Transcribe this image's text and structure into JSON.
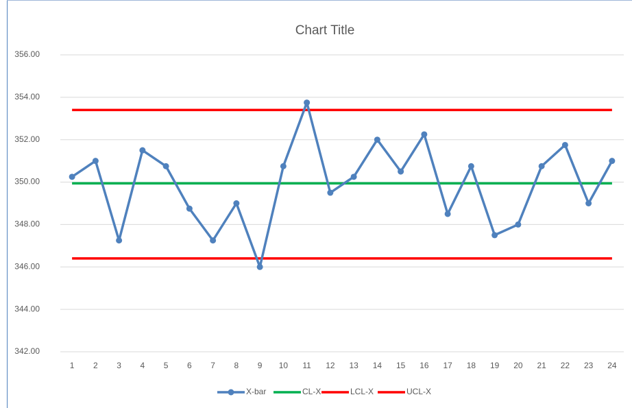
{
  "chart_data": {
    "type": "line",
    "title": "Chart Title",
    "categories": [
      "1",
      "2",
      "3",
      "4",
      "5",
      "6",
      "7",
      "8",
      "9",
      "10",
      "11",
      "12",
      "13",
      "14",
      "15",
      "16",
      "17",
      "18",
      "19",
      "20",
      "21",
      "22",
      "23",
      "24"
    ],
    "series": [
      {
        "name": "X-bar",
        "color": "#4f81bd",
        "marker": true,
        "values": [
          350.25,
          351.0,
          347.25,
          351.5,
          350.75,
          348.75,
          347.25,
          349.0,
          346.0,
          350.75,
          353.75,
          349.5,
          350.25,
          352.0,
          350.5,
          352.25,
          348.5,
          350.75,
          347.5,
          348.0,
          350.75,
          351.75,
          349.0,
          351.0
        ]
      },
      {
        "name": "CL-X",
        "color": "#00b050",
        "values": [
          349.94,
          349.94,
          349.94,
          349.94,
          349.94,
          349.94,
          349.94,
          349.94,
          349.94,
          349.94,
          349.94,
          349.94,
          349.94,
          349.94,
          349.94,
          349.94,
          349.94,
          349.94,
          349.94,
          349.94,
          349.94,
          349.94,
          349.94,
          349.94
        ]
      },
      {
        "name": "LCL-X",
        "color": "#ff0000",
        "values": [
          346.4,
          346.4,
          346.4,
          346.4,
          346.4,
          346.4,
          346.4,
          346.4,
          346.4,
          346.4,
          346.4,
          346.4,
          346.4,
          346.4,
          346.4,
          346.4,
          346.4,
          346.4,
          346.4,
          346.4,
          346.4,
          346.4,
          346.4,
          346.4
        ]
      },
      {
        "name": "UCL-X",
        "color": "#ff0000",
        "values": [
          353.4,
          353.4,
          353.4,
          353.4,
          353.4,
          353.4,
          353.4,
          353.4,
          353.4,
          353.4,
          353.4,
          353.4,
          353.4,
          353.4,
          353.4,
          353.4,
          353.4,
          353.4,
          353.4,
          353.4,
          353.4,
          353.4,
          353.4,
          353.4
        ]
      }
    ],
    "ylim": [
      342,
      356
    ],
    "yticks": [
      {
        "value": 342,
        "label": "342.00"
      },
      {
        "value": 344,
        "label": "344.00"
      },
      {
        "value": 346,
        "label": "346.00"
      },
      {
        "value": 348,
        "label": "348.00"
      },
      {
        "value": 350,
        "label": "350.00"
      },
      {
        "value": 352,
        "label": "352.00"
      },
      {
        "value": 354,
        "label": "354.00"
      },
      {
        "value": 356,
        "label": "356.00"
      }
    ],
    "grid": true,
    "legend": "bottom"
  }
}
